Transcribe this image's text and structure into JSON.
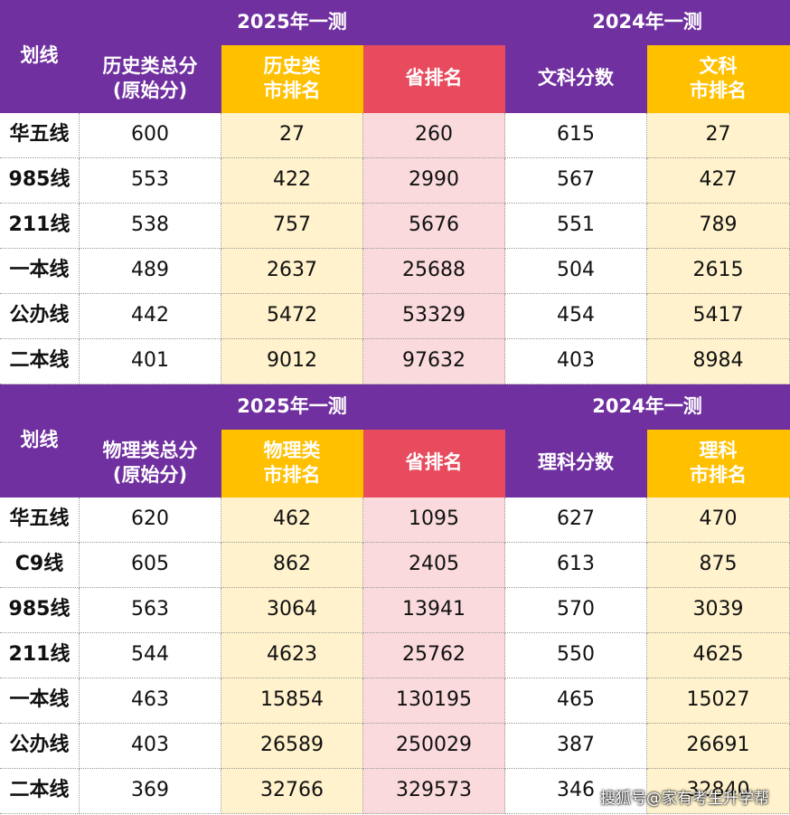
{
  "tables": [
    {
      "group1": "2025年一测",
      "group2": "2024年一测",
      "row_label": "划线",
      "columns": [
        [
          "历史类总分",
          "(原始分)"
        ],
        [
          "历史类",
          "市排名"
        ],
        [
          "省排名"
        ],
        [
          "文科分数"
        ],
        [
          "文科",
          "市排名"
        ]
      ],
      "rows": [
        [
          "华五线",
          "600",
          "27",
          "260",
          "615",
          "27"
        ],
        [
          "985线",
          "553",
          "422",
          "2990",
          "567",
          "427"
        ],
        [
          "211线",
          "538",
          "757",
          "5676",
          "551",
          "789"
        ],
        [
          "一本线",
          "489",
          "2637",
          "25688",
          "504",
          "2615"
        ],
        [
          "公办线",
          "442",
          "5472",
          "53329",
          "454",
          "5417"
        ],
        [
          "二本线",
          "401",
          "9012",
          "97632",
          "403",
          "8984"
        ]
      ]
    },
    {
      "group1": "2025年一测",
      "group2": "2024年一测",
      "row_label": "划线",
      "columns": [
        [
          "物理类总分",
          "(原始分)"
        ],
        [
          "物理类",
          "市排名"
        ],
        [
          "省排名"
        ],
        [
          "理科分数"
        ],
        [
          "理科",
          "市排名"
        ]
      ],
      "rows": [
        [
          "华五线",
          "620",
          "462",
          "1095",
          "627",
          "470"
        ],
        [
          "C9线",
          "605",
          "862",
          "2405",
          "613",
          "875"
        ],
        [
          "985线",
          "563",
          "3064",
          "13941",
          "570",
          "3039"
        ],
        [
          "211线",
          "544",
          "4623",
          "25762",
          "550",
          "4625"
        ],
        [
          "一本线",
          "463",
          "15854",
          "130195",
          "465",
          "15027"
        ],
        [
          "公办线",
          "403",
          "26589",
          "250029",
          "387",
          "26691"
        ],
        [
          "二本线",
          "369",
          "32766",
          "329573",
          "346",
          "32840"
        ]
      ]
    }
  ],
  "watermark": "搜狐号@家有考生升学帮"
}
